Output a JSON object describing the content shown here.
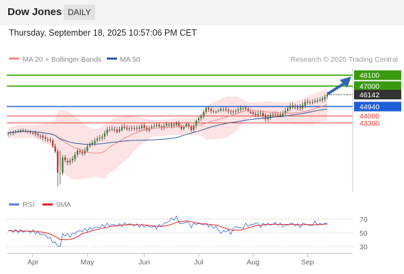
{
  "header": {
    "title": "Dow Jones",
    "period": "DAILY"
  },
  "datetime": "Thursday, September 18, 2025 10:57:06 PM CET",
  "colors": {
    "up": "#2e7d32",
    "down": "#c62828",
    "bollinger_fill": "#fde3e3",
    "ma20": "#f08a8a",
    "ma50": "#2e5b9b",
    "resistance": "#4caf1a",
    "current": "#333333",
    "pivot": "#1f5fd6",
    "support": "#e53935",
    "arrow": "#2f67b5",
    "rsi": "#5b7fd6",
    "rsi_ma": "#e02020"
  },
  "chart_data": [
    {
      "type": "candlestick",
      "legend": [
        {
          "label": "MA 20 + Bollinger Bands",
          "color": "#f08a8a"
        },
        {
          "label": "MA 50",
          "color": "#2e5b9b"
        }
      ],
      "watermark": "Research © 2025 Trading Central",
      "x_tick_labels": [
        "Apr",
        "May",
        "Jun",
        "Jul",
        "Aug",
        "Sep"
      ],
      "ylim": [
        36500,
        48700
      ],
      "levels": [
        {
          "value": 48100,
          "label": "48100",
          "kind": "resistance"
        },
        {
          "value": 47000,
          "label": "47000",
          "kind": "resistance"
        },
        {
          "value": 46142,
          "label": "46142",
          "kind": "current"
        },
        {
          "value": 44940,
          "label": "44940",
          "kind": "pivot"
        },
        {
          "value": 44000,
          "label": "44000",
          "kind": "support"
        },
        {
          "value": 43300,
          "label": "43300",
          "kind": "support"
        }
      ],
      "close_anchors": [
        [
          0,
          42300
        ],
        [
          5,
          42550
        ],
        [
          10,
          42300
        ],
        [
          15,
          41700
        ],
        [
          17,
          41500
        ],
        [
          19,
          40400
        ],
        [
          20,
          38300
        ],
        [
          21,
          38200
        ],
        [
          22,
          39800
        ],
        [
          24,
          39300
        ],
        [
          26,
          39700
        ],
        [
          28,
          40500
        ],
        [
          30,
          40200
        ],
        [
          32,
          40900
        ],
        [
          34,
          41300
        ],
        [
          36,
          41700
        ],
        [
          38,
          41900
        ],
        [
          40,
          42600
        ],
        [
          42,
          42700
        ],
        [
          44,
          42400
        ],
        [
          46,
          42900
        ],
        [
          48,
          42700
        ],
        [
          50,
          42800
        ],
        [
          52,
          42700
        ],
        [
          54,
          43000
        ],
        [
          56,
          42600
        ],
        [
          58,
          42900
        ],
        [
          60,
          43100
        ],
        [
          62,
          42800
        ],
        [
          64,
          43200
        ],
        [
          66,
          43000
        ],
        [
          68,
          43300
        ],
        [
          70,
          42700
        ],
        [
          72,
          43200
        ],
        [
          74,
          42600
        ],
        [
          76,
          43500
        ],
        [
          78,
          44000
        ],
        [
          80,
          44800
        ],
        [
          82,
          44500
        ],
        [
          84,
          44400
        ],
        [
          86,
          44700
        ],
        [
          88,
          44600
        ],
        [
          90,
          44400
        ],
        [
          92,
          44500
        ],
        [
          94,
          44800
        ],
        [
          96,
          44700
        ],
        [
          98,
          44300
        ],
        [
          100,
          44100
        ],
        [
          102,
          44300
        ],
        [
          104,
          43700
        ],
        [
          106,
          44100
        ],
        [
          108,
          44200
        ],
        [
          110,
          44000
        ],
        [
          112,
          44500
        ],
        [
          114,
          45000
        ],
        [
          116,
          44900
        ],
        [
          118,
          44800
        ],
        [
          120,
          45400
        ],
        [
          122,
          45300
        ],
        [
          124,
          45500
        ],
        [
          126,
          45600
        ],
        [
          128,
          45900
        ],
        [
          129,
          46142
        ]
      ]
    },
    {
      "type": "line",
      "title": "RSI",
      "legend": [
        {
          "label": "RSI",
          "color": "#5b7fd6"
        },
        {
          "label": "9MA",
          "color": "#e02020"
        }
      ],
      "y_tick_labels": [
        "70",
        "50",
        "30"
      ],
      "ylim": [
        20,
        80
      ],
      "reference_lines": [
        70,
        50,
        30
      ],
      "rsi_anchors": [
        [
          0,
          53
        ],
        [
          10,
          52
        ],
        [
          15,
          47
        ],
        [
          18,
          38
        ],
        [
          20,
          32
        ],
        [
          21,
          30
        ],
        [
          22,
          48
        ],
        [
          25,
          46
        ],
        [
          28,
          52
        ],
        [
          32,
          55
        ],
        [
          36,
          58
        ],
        [
          40,
          62
        ],
        [
          44,
          61
        ],
        [
          48,
          63
        ],
        [
          52,
          61
        ],
        [
          56,
          60
        ],
        [
          60,
          58
        ],
        [
          64,
          65
        ],
        [
          66,
          70
        ],
        [
          68,
          72
        ],
        [
          70,
          62
        ],
        [
          72,
          67
        ],
        [
          74,
          60
        ],
        [
          76,
          64
        ],
        [
          80,
          62
        ],
        [
          84,
          58
        ],
        [
          86,
          50
        ],
        [
          88,
          54
        ],
        [
          90,
          50
        ],
        [
          92,
          60
        ],
        [
          94,
          56
        ],
        [
          96,
          62
        ],
        [
          98,
          61
        ],
        [
          100,
          65
        ],
        [
          102,
          60
        ],
        [
          104,
          63
        ],
        [
          106,
          62
        ],
        [
          108,
          64
        ],
        [
          110,
          62
        ],
        [
          112,
          60
        ],
        [
          114,
          64
        ],
        [
          116,
          62
        ],
        [
          118,
          60
        ],
        [
          120,
          64
        ],
        [
          122,
          60
        ],
        [
          124,
          65
        ],
        [
          126,
          62
        ],
        [
          128,
          64
        ],
        [
          129,
          63
        ]
      ]
    }
  ]
}
